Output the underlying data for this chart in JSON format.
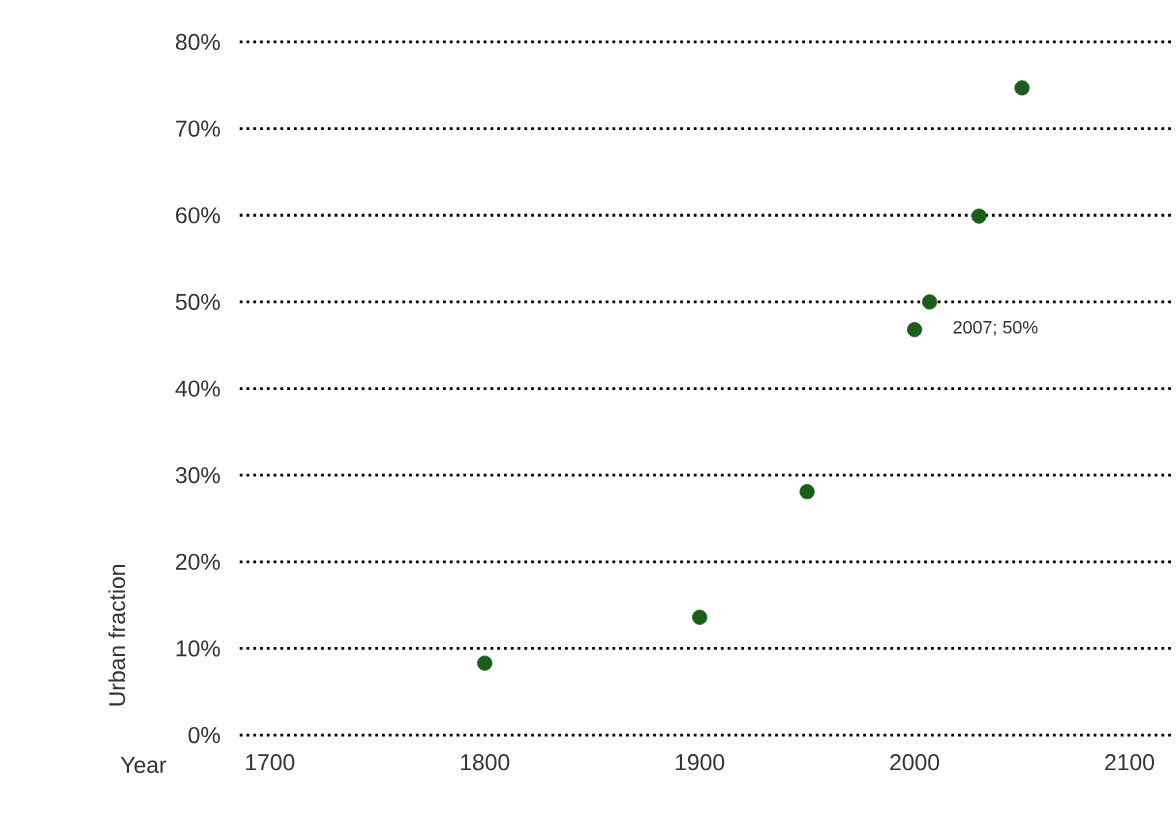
{
  "chart_data": {
    "type": "scatter",
    "xlabel": "Year",
    "ylabel": "Urban fraction",
    "x": [
      1800,
      1900,
      1950,
      2000,
      2007,
      2030,
      2050
    ],
    "values": [
      8.3,
      13.6,
      28.1,
      46.8,
      50,
      59.9,
      74.7
    ],
    "color": "#1b5e1b",
    "marker": "circle",
    "grid": "y",
    "xlim": [
      1686,
      2121
    ],
    "ylim": [
      0,
      80
    ],
    "xticks": [
      1700,
      1800,
      1900,
      2000,
      2100
    ],
    "yticks": [
      {
        "value": 0,
        "label": "0%"
      },
      {
        "value": 10,
        "label": "10%"
      },
      {
        "value": 20,
        "label": "20%"
      },
      {
        "value": 30,
        "label": "30%"
      },
      {
        "value": 40,
        "label": "40%"
      },
      {
        "value": 50,
        "label": "50%"
      },
      {
        "value": 60,
        "label": "60%"
      },
      {
        "value": 70,
        "label": "70%"
      },
      {
        "value": 80,
        "label": "80%"
      }
    ],
    "annotations": [
      {
        "text": "2007; 50%",
        "x": 2007,
        "y": 50
      }
    ]
  }
}
